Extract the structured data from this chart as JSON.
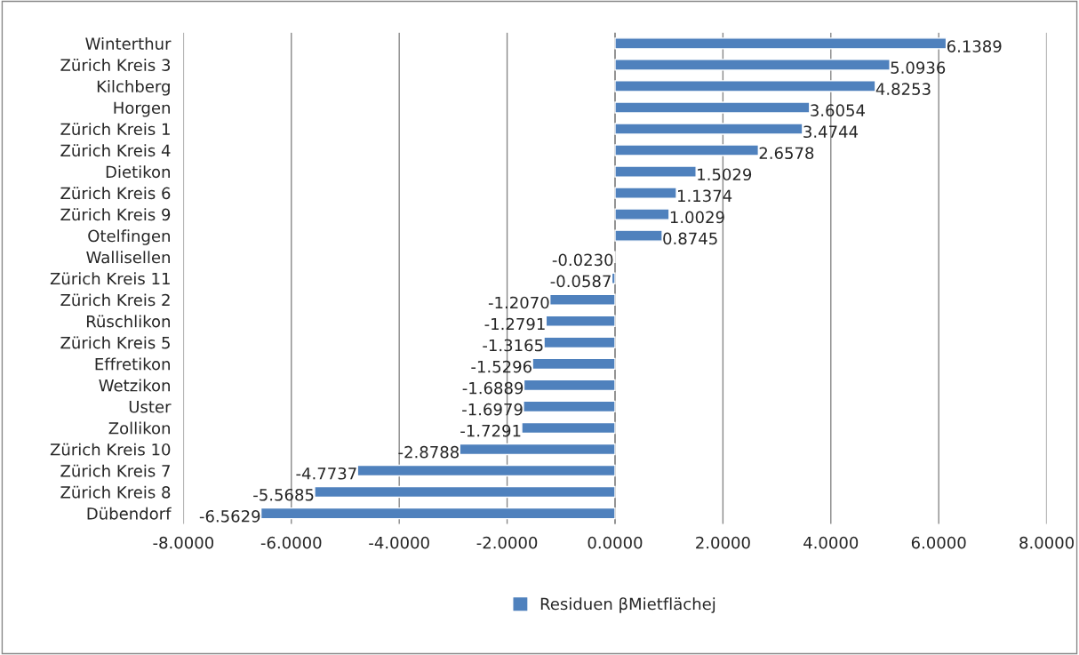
{
  "chart_data": {
    "type": "bar",
    "orientation": "horizontal",
    "categories": [
      "Winterthur",
      "Zürich Kreis 3",
      "Kilchberg",
      "Horgen",
      "Zürich Kreis 1",
      "Zürich Kreis 4",
      "Dietikon",
      "Zürich Kreis 6",
      "Zürich Kreis 9",
      "Otelfingen",
      "Wallisellen",
      "Zürich Kreis 11",
      "Zürich Kreis 2",
      "Rüschlikon",
      "Zürich Kreis 5",
      "Effretikon",
      "Wetzikon",
      "Uster",
      "Zollikon",
      "Zürich Kreis 10",
      "Zürich Kreis 7",
      "Zürich Kreis 8",
      "Dübendorf"
    ],
    "series": [
      {
        "name": "Residuen βMietflächej",
        "color": "#4f81bd",
        "values": [
          6.1389,
          5.0936,
          4.8253,
          3.6054,
          3.4744,
          2.6578,
          1.5029,
          1.1374,
          1.0029,
          0.8745,
          -0.023,
          -0.0587,
          -1.207,
          -1.2791,
          -1.3165,
          -1.5296,
          -1.6889,
          -1.6979,
          -1.7291,
          -2.8788,
          -4.7737,
          -5.5685,
          -6.5629
        ],
        "value_labels": [
          "6.1389",
          "5.0936",
          "4.8253",
          "3.6054",
          "3.4744",
          "2.6578",
          "1.5029",
          "1.1374",
          "1.0029",
          "0.8745",
          "-0.0230",
          "-0.0587",
          "-1.2070",
          "-1.2791",
          "-1.3165",
          "-1.5296",
          "-1.6889",
          "-1.6979",
          "-1.7291",
          "-2.8788",
          "-4.7737",
          "-5.5685",
          "-6.5629"
        ]
      }
    ],
    "xlim": [
      -8,
      8
    ],
    "xticks": [
      {
        "value": -8,
        "label": "-8.0000"
      },
      {
        "value": -6,
        "label": "-6.0000"
      },
      {
        "value": -4,
        "label": "-4.0000"
      },
      {
        "value": -2,
        "label": "-2.0000"
      },
      {
        "value": 0,
        "label": "0.0000"
      },
      {
        "value": 2,
        "label": "2.0000"
      },
      {
        "value": 4,
        "label": "4.0000"
      },
      {
        "value": 6,
        "label": "6.0000"
      },
      {
        "value": 8,
        "label": "8.0000"
      }
    ],
    "grid": "x",
    "legend": "bottom"
  }
}
